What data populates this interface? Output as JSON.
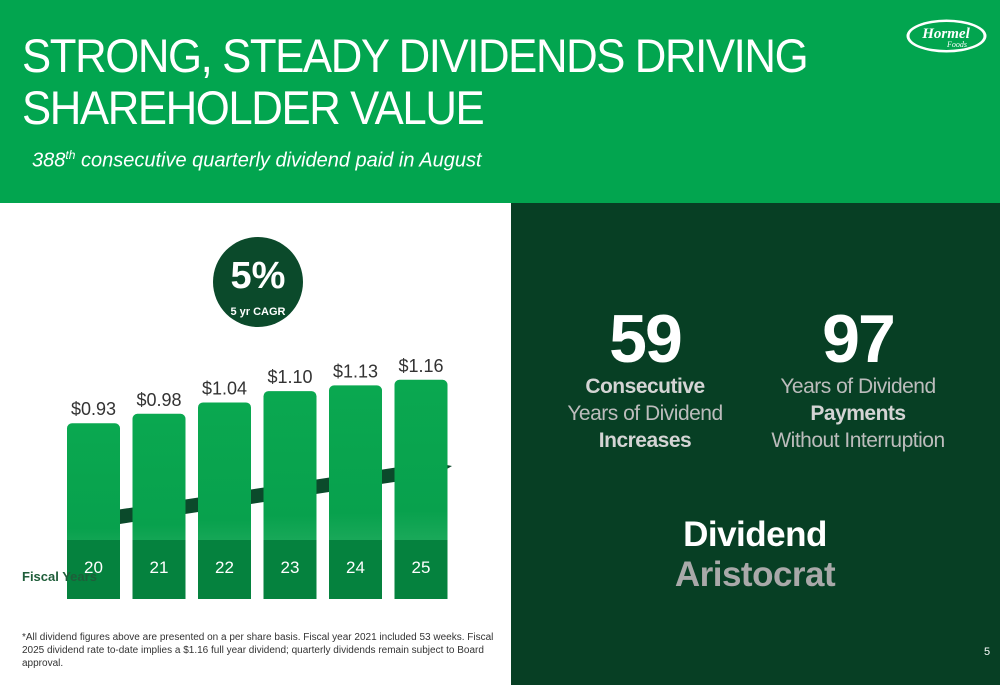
{
  "header": {
    "title_line1": "STRONG, STEADY DIVIDENDS DRIVING",
    "title_line2": "SHAREHOLDER VALUE",
    "subtitle_number": "388",
    "subtitle_sup": "th",
    "subtitle_rest": " consecutive quarterly dividend paid in August",
    "logo_main": "Hormel",
    "logo_sub": "Foods",
    "background_color": "#02a54f"
  },
  "cagr": {
    "value": "5%",
    "label": "5 yr CAGR"
  },
  "chart_data": {
    "type": "bar",
    "categories": [
      "20",
      "21",
      "22",
      "23",
      "24",
      "25"
    ],
    "values": [
      0.93,
      0.98,
      1.04,
      1.1,
      1.13,
      1.16
    ],
    "value_labels": [
      "$0.93",
      "$0.98",
      "$1.04",
      "$1.10",
      "$1.13",
      "$1.16"
    ],
    "xlabel": "Fiscal Years",
    "ylabel": "",
    "ylim": [
      0,
      1.2
    ],
    "color_top": "#08a14d",
    "color_bottom": "#05823e"
  },
  "stats": {
    "consecutive_number": "59",
    "consecutive_line1": "Consecutive",
    "consecutive_line2": "Years of Dividend",
    "consecutive_line3": "Increases",
    "payments_number": "97",
    "payments_line1": "Years of Dividend",
    "payments_line2": "Payments",
    "payments_line3": "Without Interruption"
  },
  "aristocrat": {
    "line1": "Dividend",
    "line2": "Aristocrat"
  },
  "footnote": "*All dividend figures above are presented on a per share basis. Fiscal year 2021 included 53 weeks. Fiscal 2025 dividend rate to-date implies a $1.16 full year dividend; quarterly dividends remain subject to Board approval.",
  "page_number": "5",
  "colors": {
    "green": "#02a54f",
    "dark_green": "#073f24"
  }
}
